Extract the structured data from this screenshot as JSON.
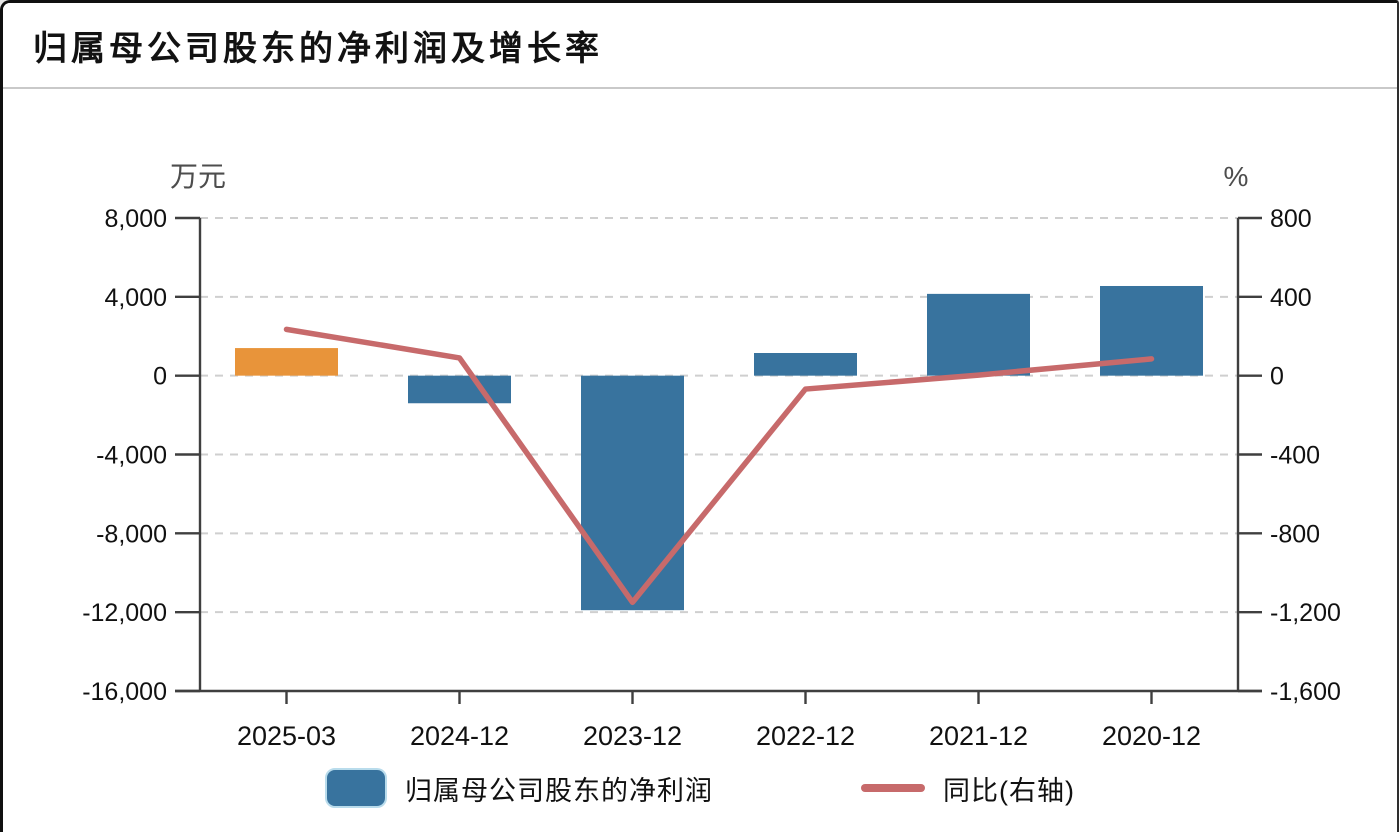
{
  "page": {
    "title": "归属母公司股东的净利润及增长率"
  },
  "chart_data": {
    "type": "bar+line",
    "title": "归属母公司股东的净利润及增长率",
    "categories": [
      "2025-03",
      "2024-12",
      "2023-12",
      "2022-12",
      "2021-12",
      "2020-12"
    ],
    "series": [
      {
        "name": "归属母公司股东的净利润",
        "type": "bar",
        "axis": "left",
        "unit": "万元",
        "values": [
          1400,
          -1400,
          -11900,
          1150,
          4150,
          4550
        ],
        "colors": [
          "#e8943a",
          "#38739e",
          "#38739e",
          "#38739e",
          "#38739e",
          "#38739e"
        ]
      },
      {
        "name": "同比(右轴)",
        "type": "line",
        "axis": "right",
        "unit": "%",
        "values": [
          235,
          90,
          -1150,
          -68,
          3,
          85
        ],
        "color": "#c76a6b"
      }
    ],
    "left_axis": {
      "label": "万元",
      "max": 8000,
      "min": -16000,
      "tick_step": 4000,
      "ticks": [
        "8,000",
        "4,000",
        "0",
        "-4,000",
        "-8,000",
        "-12,000",
        "-16,000"
      ]
    },
    "right_axis": {
      "label": "%",
      "max": 800,
      "min": -1600,
      "tick_step": 400,
      "ticks": [
        "800",
        "400",
        "0",
        "-400",
        "-800",
        "-1,200",
        "-1,600"
      ]
    },
    "grid": "dashed-horizontal",
    "legend_position": "bottom",
    "legend": [
      {
        "label": "归属母公司股东的净利润",
        "marker": "square",
        "color": "#38739e"
      },
      {
        "label": "同比(右轴)",
        "marker": "line",
        "color": "#c76a6b"
      }
    ]
  },
  "colors": {
    "bar_blue": "#38739e",
    "bar_orange": "#e8943a",
    "line_red": "#c76a6b",
    "axis": "#3f3f3f",
    "gridline": "#cfcfcf",
    "tick_text": "#111111",
    "unit_text": "#4d4d4d",
    "divider": "#c9c9c9"
  }
}
